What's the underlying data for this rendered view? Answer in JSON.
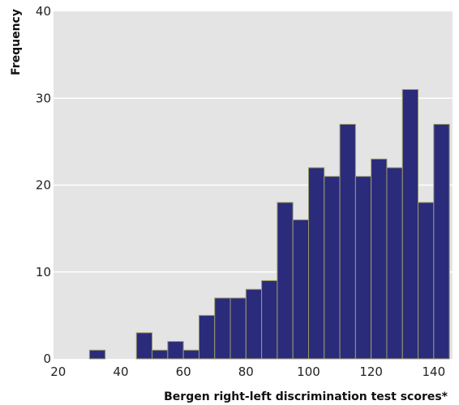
{
  "chart_data": {
    "type": "bar",
    "title": "",
    "xlabel": "Bergen right-left discrimination test scores*",
    "ylabel": "Frequency",
    "xlim": [
      18.5,
      146
    ],
    "ylim": [
      0,
      40
    ],
    "x_ticks": [
      "20",
      "40",
      "60",
      "80",
      "100",
      "120",
      "140"
    ],
    "y_ticks": [
      "0",
      "10",
      "20",
      "30",
      "40"
    ],
    "bin_width": 5,
    "bins": [
      {
        "x0": 30,
        "x1": 35,
        "value": 1
      },
      {
        "x0": 45,
        "x1": 50,
        "value": 3
      },
      {
        "x0": 50,
        "x1": 55,
        "value": 1
      },
      {
        "x0": 55,
        "x1": 60,
        "value": 2
      },
      {
        "x0": 60,
        "x1": 65,
        "value": 1
      },
      {
        "x0": 65,
        "x1": 70,
        "value": 5
      },
      {
        "x0": 70,
        "x1": 75,
        "value": 7
      },
      {
        "x0": 75,
        "x1": 80,
        "value": 7
      },
      {
        "x0": 80,
        "x1": 85,
        "value": 8
      },
      {
        "x0": 85,
        "x1": 90,
        "value": 9
      },
      {
        "x0": 90,
        "x1": 95,
        "value": 18
      },
      {
        "x0": 95,
        "x1": 100,
        "value": 16
      },
      {
        "x0": 100,
        "x1": 105,
        "value": 22
      },
      {
        "x0": 105,
        "x1": 110,
        "value": 21
      },
      {
        "x0": 110,
        "x1": 115,
        "value": 27
      },
      {
        "x0": 115,
        "x1": 120,
        "value": 21
      },
      {
        "x0": 120,
        "x1": 125,
        "value": 23
      },
      {
        "x0": 125,
        "x1": 130,
        "value": 22
      },
      {
        "x0": 130,
        "x1": 135,
        "value": 31
      },
      {
        "x0": 135,
        "x1": 140,
        "value": 18
      },
      {
        "x0": 140,
        "x1": 145,
        "value": 27
      }
    ],
    "grid": true,
    "legend": "none",
    "colors": {
      "plot_background": "#e5e4e4",
      "bar_fill": "#2b2b7c",
      "bar_edge": "#9a9a6a",
      "grid": "#ffffff"
    }
  }
}
